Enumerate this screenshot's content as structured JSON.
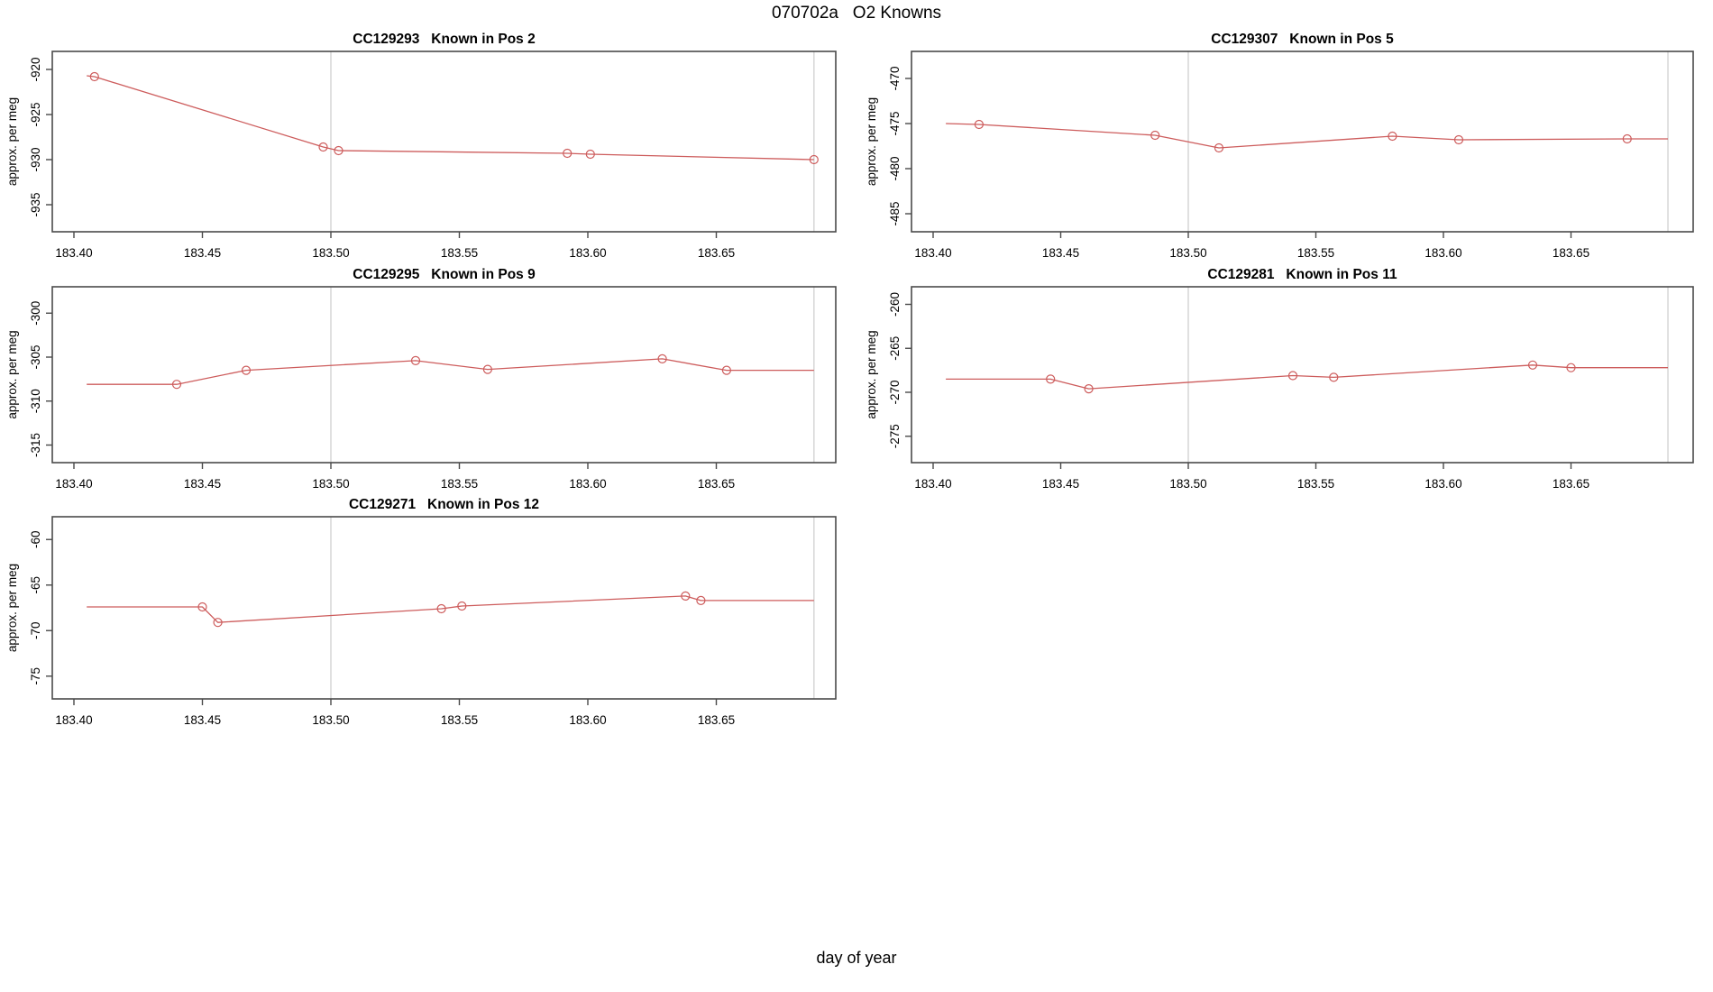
{
  "title": "070702a   O2 Knowns",
  "xlabel": "day of year",
  "colors": {
    "line": "#CD5C5C",
    "marker": "#CD5C5C",
    "frame": "#4a4a4a",
    "gridline": "#d9d9d9",
    "text": "#000000",
    "background": "#ffffff"
  },
  "chart_data": [
    {
      "type": "line",
      "id": "CC129293",
      "title": "CC129293   Known in Pos 2",
      "ylabel": "approx. per meg",
      "grid": {
        "row": 0,
        "col": 0
      },
      "xlim": [
        183.386,
        183.697
      ],
      "ylim": [
        -938,
        -918
      ],
      "xticks": [
        "183.40",
        "183.45",
        "183.50",
        "183.55",
        "183.60",
        "183.65"
      ],
      "xtick_values": [
        183.4,
        183.45,
        183.5,
        183.55,
        183.6,
        183.65
      ],
      "yticks": [
        "-920",
        "-925",
        "-930",
        "-935"
      ],
      "ytick_values": [
        -920,
        -925,
        -930,
        -935
      ],
      "vlines": [
        183.5,
        183.688
      ],
      "points": [
        {
          "x": 183.405,
          "y": -920.7,
          "marker": false
        },
        {
          "x": 183.408,
          "y": -920.8,
          "marker": true
        },
        {
          "x": 183.497,
          "y": -928.6,
          "marker": true
        },
        {
          "x": 183.503,
          "y": -929.0,
          "marker": true
        },
        {
          "x": 183.592,
          "y": -929.3,
          "marker": true
        },
        {
          "x": 183.601,
          "y": -929.4,
          "marker": true
        },
        {
          "x": 183.688,
          "y": -930.0,
          "marker": true
        }
      ]
    },
    {
      "type": "line",
      "id": "CC129307",
      "title": "CC129307   Known in Pos 5",
      "ylabel": "approx. per meg",
      "grid": {
        "row": 0,
        "col": 1
      },
      "xlim": [
        183.386,
        183.697
      ],
      "ylim": [
        -487,
        -467
      ],
      "xticks": [
        "183.40",
        "183.45",
        "183.50",
        "183.55",
        "183.60",
        "183.65"
      ],
      "xtick_values": [
        183.4,
        183.45,
        183.5,
        183.55,
        183.6,
        183.65
      ],
      "yticks": [
        "-470",
        "-475",
        "-480",
        "-485"
      ],
      "ytick_values": [
        -470,
        -475,
        -480,
        -485
      ],
      "vlines": [
        183.5,
        183.688
      ],
      "points": [
        {
          "x": 183.405,
          "y": -475.0,
          "marker": false
        },
        {
          "x": 183.418,
          "y": -475.1,
          "marker": true
        },
        {
          "x": 183.487,
          "y": -476.3,
          "marker": true
        },
        {
          "x": 183.512,
          "y": -477.7,
          "marker": true
        },
        {
          "x": 183.58,
          "y": -476.4,
          "marker": true
        },
        {
          "x": 183.606,
          "y": -476.8,
          "marker": true
        },
        {
          "x": 183.672,
          "y": -476.7,
          "marker": true
        },
        {
          "x": 183.688,
          "y": -476.7,
          "marker": false
        }
      ]
    },
    {
      "type": "line",
      "id": "CC129295",
      "title": "CC129295   Known in Pos 9",
      "ylabel": "approx. per meg",
      "grid": {
        "row": 1,
        "col": 0
      },
      "xlim": [
        183.386,
        183.697
      ],
      "ylim": [
        -317,
        -297
      ],
      "xticks": [
        "183.40",
        "183.45",
        "183.50",
        "183.55",
        "183.60",
        "183.65"
      ],
      "xtick_values": [
        183.4,
        183.45,
        183.5,
        183.55,
        183.6,
        183.65
      ],
      "yticks": [
        "-300",
        "-305",
        "-310",
        "-315"
      ],
      "ytick_values": [
        -300,
        -305,
        -310,
        -315
      ],
      "vlines": [
        183.5,
        183.688
      ],
      "points": [
        {
          "x": 183.405,
          "y": -308.1,
          "marker": false
        },
        {
          "x": 183.44,
          "y": -308.1,
          "marker": true
        },
        {
          "x": 183.467,
          "y": -306.5,
          "marker": true
        },
        {
          "x": 183.533,
          "y": -305.4,
          "marker": true
        },
        {
          "x": 183.561,
          "y": -306.4,
          "marker": true
        },
        {
          "x": 183.629,
          "y": -305.2,
          "marker": true
        },
        {
          "x": 183.654,
          "y": -306.5,
          "marker": true
        },
        {
          "x": 183.688,
          "y": -306.5,
          "marker": false
        }
      ]
    },
    {
      "type": "line",
      "id": "CC129281",
      "title": "CC129281   Known in Pos 11",
      "ylabel": "approx. per meg",
      "grid": {
        "row": 1,
        "col": 1
      },
      "xlim": [
        183.386,
        183.697
      ],
      "ylim": [
        -278,
        -258
      ],
      "xticks": [
        "183.40",
        "183.45",
        "183.50",
        "183.55",
        "183.60",
        "183.65"
      ],
      "xtick_values": [
        183.4,
        183.45,
        183.5,
        183.55,
        183.6,
        183.65
      ],
      "yticks": [
        "-260",
        "-265",
        "-270",
        "-275"
      ],
      "ytick_values": [
        -260,
        -265,
        -270,
        -275
      ],
      "vlines": [
        183.5,
        183.688
      ],
      "points": [
        {
          "x": 183.405,
          "y": -268.5,
          "marker": false
        },
        {
          "x": 183.446,
          "y": -268.5,
          "marker": true
        },
        {
          "x": 183.461,
          "y": -269.6,
          "marker": true
        },
        {
          "x": 183.541,
          "y": -268.1,
          "marker": true
        },
        {
          "x": 183.557,
          "y": -268.3,
          "marker": true
        },
        {
          "x": 183.635,
          "y": -266.9,
          "marker": true
        },
        {
          "x": 183.65,
          "y": -267.2,
          "marker": true
        },
        {
          "x": 183.688,
          "y": -267.2,
          "marker": false
        }
      ]
    },
    {
      "type": "line",
      "id": "CC129271",
      "title": "CC129271   Known in Pos 12",
      "ylabel": "approx. per meg",
      "grid": {
        "row": 2,
        "col": 0
      },
      "xlim": [
        183.386,
        183.697
      ],
      "ylim": [
        -77.5,
        -57.5
      ],
      "xticks": [
        "183.40",
        "183.45",
        "183.50",
        "183.55",
        "183.60",
        "183.65"
      ],
      "xtick_values": [
        183.4,
        183.45,
        183.5,
        183.55,
        183.6,
        183.65
      ],
      "yticks": [
        "-60",
        "-65",
        "-70",
        "-75"
      ],
      "ytick_values": [
        -60,
        -65,
        -70,
        -75
      ],
      "vlines": [
        183.5,
        183.688
      ],
      "points": [
        {
          "x": 183.405,
          "y": -67.4,
          "marker": false
        },
        {
          "x": 183.45,
          "y": -67.4,
          "marker": true
        },
        {
          "x": 183.456,
          "y": -69.1,
          "marker": true
        },
        {
          "x": 183.543,
          "y": -67.6,
          "marker": true
        },
        {
          "x": 183.551,
          "y": -67.3,
          "marker": true
        },
        {
          "x": 183.638,
          "y": -66.2,
          "marker": true
        },
        {
          "x": 183.644,
          "y": -66.7,
          "marker": true
        },
        {
          "x": 183.688,
          "y": -66.7,
          "marker": false
        }
      ]
    }
  ]
}
